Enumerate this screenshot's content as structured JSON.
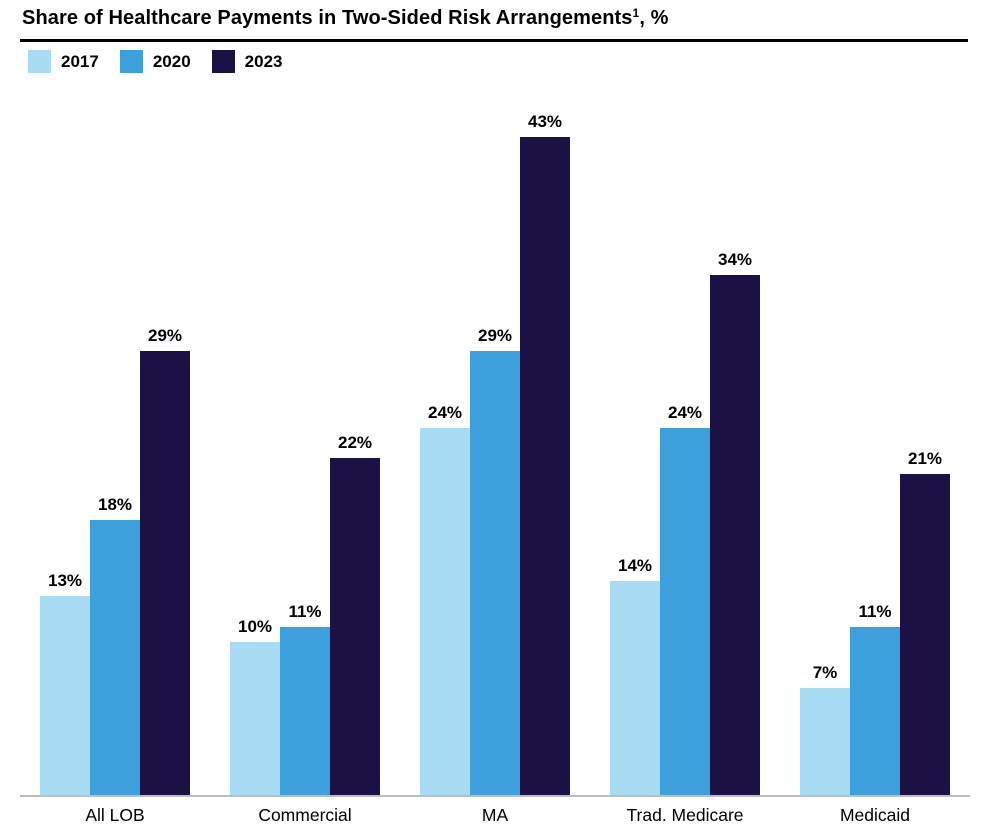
{
  "header": {
    "title": "Share of Healthcare Payments in Two-Sided Risk Arrangements",
    "footnote_marker": "1",
    "title_suffix": ", %"
  },
  "legend": {
    "items": [
      {
        "label": "2017",
        "color": "#A8DCF5"
      },
      {
        "label": "2020",
        "color": "#3BA0DB"
      },
      {
        "label": "2023",
        "color": "#1B1144"
      }
    ]
  },
  "chart_data": {
    "type": "bar",
    "title": "Share of Healthcare Payments in Two-Sided Risk Arrangements, %",
    "categories": [
      "All LOB",
      "Commercial",
      "MA",
      "Trad. Medicare",
      "Medicaid"
    ],
    "series": [
      {
        "name": "2017",
        "color": "#A8DCF5",
        "values": [
          13,
          10,
          24,
          14,
          7
        ]
      },
      {
        "name": "2020",
        "color": "#3BA0DB",
        "values": [
          18,
          11,
          29,
          24,
          11
        ]
      },
      {
        "name": "2023",
        "color": "#1B1144",
        "values": [
          29,
          22,
          43,
          34,
          21
        ]
      }
    ],
    "value_suffix": "%",
    "unit": "%",
    "ylim": [
      0,
      45
    ],
    "grid": false,
    "data_labels": true,
    "legend_position": "top-left",
    "xlabel": "",
    "ylabel": ""
  },
  "colors": {
    "title_text": "#000000",
    "rule": "#000000",
    "baseline": "#BDBDBD",
    "label_text": "#000000"
  }
}
